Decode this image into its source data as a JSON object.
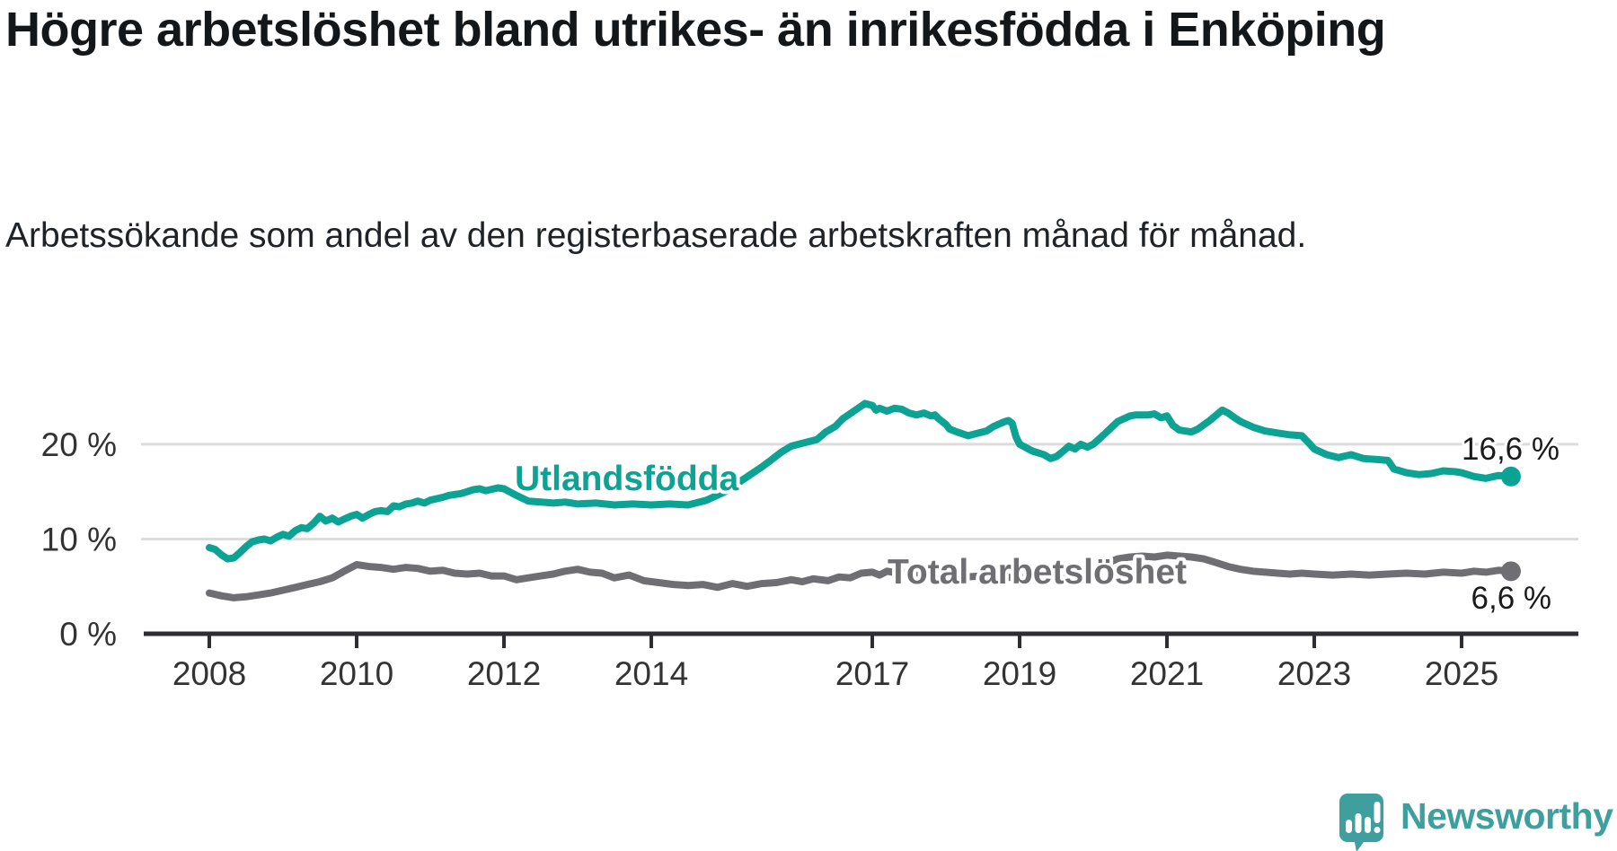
{
  "title": "Högre arbetslöshet bland utrikes- än inrikesfödda i Enköping",
  "subtitle": "Arbetssökande som andel av den registerbaserade arbetskraften månad för månad.",
  "branding": {
    "logo_text": "Newsworthy",
    "logo_color": "#3f9e9e"
  },
  "colors": {
    "accent_teal": "#0ca294",
    "series_gray": "#6f6f73",
    "grid": "#dcdcdc",
    "axis": "#2e2e32",
    "tick_text": "#333333",
    "value_text": "#1a1a1a"
  },
  "chart_data": {
    "type": "line",
    "title": "Högre arbetslöshet bland utrikes- än inrikesfödda i Enköping",
    "subtitle": "Arbetssökande som andel av den registerbaserade arbetskraften månad för månad.",
    "xlabel": "",
    "ylabel": "",
    "grid": "horizontal",
    "legend_position": "inline-on-line",
    "x_axis": {
      "unit": "year",
      "range": [
        2007.1,
        2026.6
      ],
      "ticks": [
        2008,
        2010,
        2012,
        2014,
        2017,
        2019,
        2021,
        2023,
        2025
      ],
      "tick_labels": [
        "2008",
        "2010",
        "2012",
        "2014",
        "2017",
        "2019",
        "2021",
        "2023",
        "2025"
      ]
    },
    "y_axis": {
      "unit": "percent",
      "range": [
        0,
        28
      ],
      "ticks": [
        0,
        10,
        20
      ],
      "tick_labels": [
        "0 %",
        "10 %",
        "20 %"
      ]
    },
    "series": [
      {
        "name": "Utlandsfödda",
        "color": "#0ca294",
        "end_value": 16.6,
        "end_label": "16,6 %",
        "points": [
          [
            2008.0,
            9.1
          ],
          [
            2008.08,
            8.9
          ],
          [
            2008.17,
            8.3
          ],
          [
            2008.25,
            7.9
          ],
          [
            2008.33,
            8.0
          ],
          [
            2008.42,
            8.6
          ],
          [
            2008.5,
            9.2
          ],
          [
            2008.58,
            9.7
          ],
          [
            2008.67,
            9.9
          ],
          [
            2008.75,
            10.0
          ],
          [
            2008.83,
            9.8
          ],
          [
            2008.92,
            10.2
          ],
          [
            2009.0,
            10.5
          ],
          [
            2009.08,
            10.3
          ],
          [
            2009.17,
            10.9
          ],
          [
            2009.25,
            11.2
          ],
          [
            2009.33,
            11.1
          ],
          [
            2009.42,
            11.7
          ],
          [
            2009.5,
            12.4
          ],
          [
            2009.58,
            11.9
          ],
          [
            2009.67,
            12.2
          ],
          [
            2009.75,
            11.8
          ],
          [
            2009.83,
            12.1
          ],
          [
            2009.92,
            12.4
          ],
          [
            2010.0,
            12.6
          ],
          [
            2010.08,
            12.2
          ],
          [
            2010.17,
            12.6
          ],
          [
            2010.25,
            12.9
          ],
          [
            2010.33,
            13.0
          ],
          [
            2010.42,
            12.9
          ],
          [
            2010.5,
            13.5
          ],
          [
            2010.58,
            13.4
          ],
          [
            2010.67,
            13.7
          ],
          [
            2010.75,
            13.8
          ],
          [
            2010.83,
            14.0
          ],
          [
            2010.92,
            13.8
          ],
          [
            2011.0,
            14.1
          ],
          [
            2011.17,
            14.4
          ],
          [
            2011.25,
            14.6
          ],
          [
            2011.42,
            14.8
          ],
          [
            2011.5,
            15.0
          ],
          [
            2011.58,
            15.2
          ],
          [
            2011.67,
            15.3
          ],
          [
            2011.75,
            15.1
          ],
          [
            2011.92,
            15.4
          ],
          [
            2012.0,
            15.3
          ],
          [
            2012.17,
            14.6
          ],
          [
            2012.33,
            14.0
          ],
          [
            2012.5,
            13.9
          ],
          [
            2012.67,
            13.8
          ],
          [
            2012.83,
            13.9
          ],
          [
            2013.0,
            13.7
          ],
          [
            2013.25,
            13.8
          ],
          [
            2013.5,
            13.6
          ],
          [
            2013.75,
            13.7
          ],
          [
            2014.0,
            13.6
          ],
          [
            2014.25,
            13.7
          ],
          [
            2014.5,
            13.6
          ],
          [
            2014.75,
            14.1
          ],
          [
            2015.0,
            15.0
          ],
          [
            2015.25,
            16.3
          ],
          [
            2015.5,
            17.6
          ],
          [
            2015.62,
            18.3
          ],
          [
            2015.77,
            19.2
          ],
          [
            2015.9,
            19.8
          ],
          [
            2016.0,
            20.0
          ],
          [
            2016.1,
            20.2
          ],
          [
            2016.25,
            20.5
          ],
          [
            2016.37,
            21.3
          ],
          [
            2016.5,
            21.9
          ],
          [
            2016.6,
            22.7
          ],
          [
            2016.75,
            23.5
          ],
          [
            2016.9,
            24.3
          ],
          [
            2017.0,
            24.1
          ],
          [
            2017.05,
            23.6
          ],
          [
            2017.1,
            23.8
          ],
          [
            2017.2,
            23.5
          ],
          [
            2017.3,
            23.8
          ],
          [
            2017.4,
            23.7
          ],
          [
            2017.5,
            23.3
          ],
          [
            2017.6,
            23.1
          ],
          [
            2017.7,
            23.3
          ],
          [
            2017.8,
            23.0
          ],
          [
            2017.85,
            23.1
          ],
          [
            2017.9,
            22.7
          ],
          [
            2018.0,
            22.1
          ],
          [
            2018.05,
            21.6
          ],
          [
            2018.15,
            21.3
          ],
          [
            2018.3,
            20.9
          ],
          [
            2018.4,
            21.1
          ],
          [
            2018.55,
            21.4
          ],
          [
            2018.65,
            21.9
          ],
          [
            2018.8,
            22.4
          ],
          [
            2018.85,
            22.5
          ],
          [
            2018.9,
            22.2
          ],
          [
            2018.95,
            20.8
          ],
          [
            2019.0,
            20.0
          ],
          [
            2019.17,
            19.3
          ],
          [
            2019.33,
            18.9
          ],
          [
            2019.42,
            18.5
          ],
          [
            2019.5,
            18.7
          ],
          [
            2019.58,
            19.2
          ],
          [
            2019.67,
            19.8
          ],
          [
            2019.75,
            19.5
          ],
          [
            2019.83,
            20.0
          ],
          [
            2019.92,
            19.7
          ],
          [
            2020.0,
            20.0
          ],
          [
            2020.17,
            21.2
          ],
          [
            2020.33,
            22.4
          ],
          [
            2020.5,
            23.0
          ],
          [
            2020.58,
            23.1
          ],
          [
            2020.75,
            23.1
          ],
          [
            2020.83,
            23.2
          ],
          [
            2020.92,
            22.8
          ],
          [
            2021.0,
            23.0
          ],
          [
            2021.08,
            22.0
          ],
          [
            2021.17,
            21.5
          ],
          [
            2021.33,
            21.3
          ],
          [
            2021.42,
            21.6
          ],
          [
            2021.58,
            22.5
          ],
          [
            2021.75,
            23.6
          ],
          [
            2021.83,
            23.3
          ],
          [
            2021.92,
            22.8
          ],
          [
            2022.0,
            22.4
          ],
          [
            2022.17,
            21.8
          ],
          [
            2022.33,
            21.4
          ],
          [
            2022.5,
            21.2
          ],
          [
            2022.67,
            21.0
          ],
          [
            2022.83,
            20.9
          ],
          [
            2022.92,
            20.2
          ],
          [
            2023.0,
            19.5
          ],
          [
            2023.17,
            18.9
          ],
          [
            2023.33,
            18.6
          ],
          [
            2023.5,
            18.9
          ],
          [
            2023.67,
            18.5
          ],
          [
            2023.83,
            18.4
          ],
          [
            2024.0,
            18.3
          ],
          [
            2024.08,
            17.4
          ],
          [
            2024.25,
            17.0
          ],
          [
            2024.42,
            16.8
          ],
          [
            2024.58,
            16.9
          ],
          [
            2024.75,
            17.2
          ],
          [
            2024.92,
            17.1
          ],
          [
            2025.0,
            17.0
          ],
          [
            2025.17,
            16.6
          ],
          [
            2025.33,
            16.4
          ],
          [
            2025.5,
            16.7
          ],
          [
            2025.67,
            16.6
          ]
        ]
      },
      {
        "name": "Total arbetslöshet",
        "color": "#6f6f73",
        "end_value": 6.6,
        "end_label": "6,6 %",
        "points": [
          [
            2008.0,
            4.3
          ],
          [
            2008.17,
            4.0
          ],
          [
            2008.33,
            3.8
          ],
          [
            2008.5,
            3.9
          ],
          [
            2008.67,
            4.1
          ],
          [
            2008.83,
            4.3
          ],
          [
            2009.0,
            4.6
          ],
          [
            2009.17,
            4.9
          ],
          [
            2009.33,
            5.2
          ],
          [
            2009.5,
            5.5
          ],
          [
            2009.67,
            5.9
          ],
          [
            2009.83,
            6.6
          ],
          [
            2010.0,
            7.3
          ],
          [
            2010.17,
            7.1
          ],
          [
            2010.33,
            7.0
          ],
          [
            2010.5,
            6.8
          ],
          [
            2010.67,
            7.0
          ],
          [
            2010.83,
            6.9
          ],
          [
            2011.0,
            6.6
          ],
          [
            2011.17,
            6.7
          ],
          [
            2011.33,
            6.4
          ],
          [
            2011.5,
            6.3
          ],
          [
            2011.67,
            6.4
          ],
          [
            2011.83,
            6.1
          ],
          [
            2012.0,
            6.1
          ],
          [
            2012.17,
            5.7
          ],
          [
            2012.33,
            5.9
          ],
          [
            2012.5,
            6.1
          ],
          [
            2012.67,
            6.3
          ],
          [
            2012.83,
            6.6
          ],
          [
            2013.0,
            6.8
          ],
          [
            2013.17,
            6.5
          ],
          [
            2013.33,
            6.4
          ],
          [
            2013.5,
            5.9
          ],
          [
            2013.7,
            6.2
          ],
          [
            2013.9,
            5.6
          ],
          [
            2014.1,
            5.4
          ],
          [
            2014.3,
            5.2
          ],
          [
            2014.5,
            5.1
          ],
          [
            2014.7,
            5.2
          ],
          [
            2014.9,
            4.9
          ],
          [
            2015.1,
            5.3
          ],
          [
            2015.3,
            5.0
          ],
          [
            2015.5,
            5.3
          ],
          [
            2015.7,
            5.4
          ],
          [
            2015.9,
            5.7
          ],
          [
            2016.05,
            5.5
          ],
          [
            2016.2,
            5.8
          ],
          [
            2016.4,
            5.6
          ],
          [
            2016.55,
            6.0
          ],
          [
            2016.7,
            5.9
          ],
          [
            2016.85,
            6.4
          ],
          [
            2017.0,
            6.5
          ],
          [
            2017.1,
            6.2
          ],
          [
            2017.2,
            6.6
          ],
          [
            2017.35,
            6.4
          ],
          [
            2017.5,
            6.5
          ],
          [
            2017.75,
            6.3
          ],
          [
            2018.0,
            6.2
          ],
          [
            2018.25,
            6.0
          ],
          [
            2018.5,
            6.1
          ],
          [
            2018.75,
            6.0
          ],
          [
            2019.0,
            5.9
          ],
          [
            2019.25,
            6.0
          ],
          [
            2019.5,
            6.2
          ],
          [
            2019.75,
            6.5
          ],
          [
            2020.0,
            6.8
          ],
          [
            2020.17,
            7.4
          ],
          [
            2020.33,
            7.9
          ],
          [
            2020.5,
            8.1
          ],
          [
            2020.67,
            8.2
          ],
          [
            2020.83,
            8.1
          ],
          [
            2021.0,
            8.3
          ],
          [
            2021.17,
            8.2
          ],
          [
            2021.33,
            8.1
          ],
          [
            2021.5,
            7.9
          ],
          [
            2021.67,
            7.5
          ],
          [
            2021.83,
            7.1
          ],
          [
            2022.0,
            6.8
          ],
          [
            2022.17,
            6.6
          ],
          [
            2022.33,
            6.5
          ],
          [
            2022.5,
            6.4
          ],
          [
            2022.67,
            6.3
          ],
          [
            2022.83,
            6.4
          ],
          [
            2023.0,
            6.3
          ],
          [
            2023.25,
            6.2
          ],
          [
            2023.5,
            6.3
          ],
          [
            2023.75,
            6.2
          ],
          [
            2024.0,
            6.3
          ],
          [
            2024.25,
            6.4
          ],
          [
            2024.5,
            6.3
          ],
          [
            2024.75,
            6.5
          ],
          [
            2025.0,
            6.4
          ],
          [
            2025.17,
            6.6
          ],
          [
            2025.33,
            6.5
          ],
          [
            2025.5,
            6.7
          ],
          [
            2025.67,
            6.6
          ]
        ]
      }
    ]
  }
}
